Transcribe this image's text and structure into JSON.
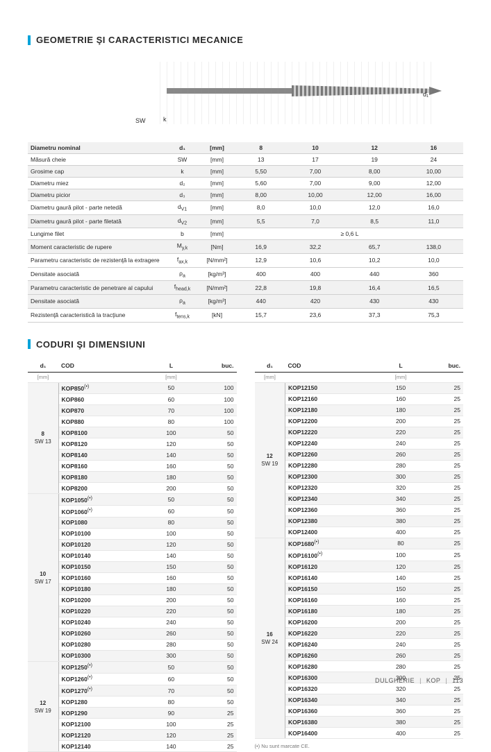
{
  "section1_title": "GEOMETRIE ŞI CARACTERISTICI MECANICE",
  "section2_title": "CODURI ŞI DIMENSIUNI",
  "diagram": {
    "sw": "SW",
    "k": "k",
    "d1": "d₁"
  },
  "mech": {
    "rows": [
      {
        "alt": true,
        "bold": true,
        "label": "Diametru nominal",
        "sym": "d₁",
        "unit": "[mm]",
        "v8": "8",
        "v10": "10",
        "v12": "12",
        "v16": "16"
      },
      {
        "alt": false,
        "label": "Măsură cheie",
        "sym": "SW",
        "unit": "[mm]",
        "v8": "13",
        "v10": "17",
        "v12": "19",
        "v16": "24"
      },
      {
        "alt": true,
        "label": "Grosime cap",
        "sym": "k",
        "unit": "[mm]",
        "v8": "5,50",
        "v10": "7,00",
        "v12": "8,00",
        "v16": "10,00"
      },
      {
        "alt": false,
        "label": "Diametru miez",
        "sym": "d₂",
        "unit": "[mm]",
        "v8": "5,60",
        "v10": "7,00",
        "v12": "9,00",
        "v16": "12,00"
      },
      {
        "alt": true,
        "label": "Diametru picior",
        "sym": "d₃",
        "unit": "[mm]",
        "v8": "8,00",
        "v10": "10,00",
        "v12": "12,00",
        "v16": "16,00"
      },
      {
        "alt": false,
        "label": "Diametru gaură pilot - parte netedă",
        "sym": "d",
        "subsym": "V1",
        "unit": "[mm]",
        "v8": "8,0",
        "v10": "10,0",
        "v12": "12,0",
        "v16": "16,0"
      },
      {
        "alt": true,
        "label": "Diametru gaură pilot - parte filetată",
        "sym": "d",
        "subsym": "V2",
        "unit": "[mm]",
        "v8": "5,5",
        "v10": "7,0",
        "v12": "8,5",
        "v16": "11,0"
      },
      {
        "alt": false,
        "label": "Lungime filet",
        "sym": "b",
        "unit": "[mm]",
        "span": "≥ 0,6 L"
      },
      {
        "alt": true,
        "label": "Moment caracteristic de rupere",
        "sym": "M",
        "subsym": "y,k",
        "unit": "[Nm]",
        "v8": "16,9",
        "v10": "32,2",
        "v12": "65,7",
        "v16": "138,0"
      },
      {
        "alt": false,
        "label": "Parametru caracteristic de rezistenţă la extragere",
        "sym": "f",
        "subsym": "ax,k",
        "unit": "[N/mm²]",
        "v8": "12,9",
        "v10": "10,6",
        "v12": "10,2",
        "v16": "10,0"
      },
      {
        "alt": false,
        "label": "Densitate asociată",
        "sym": "ρ",
        "subsym": "a",
        "unit": "[kg/m³]",
        "v8": "400",
        "v10": "400",
        "v12": "440",
        "v16": "360"
      },
      {
        "alt": true,
        "label": "Parametru caracteristic de penetrare al capului",
        "sym": "f",
        "subsym": "head,k",
        "unit": "[N/mm²]",
        "v8": "22,8",
        "v10": "19,8",
        "v12": "16,4",
        "v16": "16,5"
      },
      {
        "alt": true,
        "label": "Densitate asociată",
        "sym": "ρ",
        "subsym": "a",
        "unit": "[kg/m³]",
        "v8": "440",
        "v10": "420",
        "v12": "430",
        "v16": "430"
      },
      {
        "alt": false,
        "label": "Rezistenţă caracteristică la tracţiune",
        "sym": "f",
        "subsym": "tens,k",
        "unit": "[kN]",
        "v8": "15,7",
        "v10": "23,6",
        "v12": "37,3",
        "v16": "75,3"
      }
    ]
  },
  "codes": {
    "headers": {
      "d1": "d₁",
      "cod": "COD",
      "l": "L",
      "buc": "buc."
    },
    "unit": "[mm]",
    "left": [
      {
        "group": {
          "d1": "8",
          "sw": "SW 13"
        },
        "rows": [
          {
            "cod": "KOP850",
            "sup": "(•)",
            "l": "50",
            "b": "100"
          },
          {
            "cod": "KOP860",
            "l": "60",
            "b": "100"
          },
          {
            "cod": "KOP870",
            "l": "70",
            "b": "100"
          },
          {
            "cod": "KOP880",
            "l": "80",
            "b": "100"
          },
          {
            "cod": "KOP8100",
            "l": "100",
            "b": "50"
          },
          {
            "cod": "KOP8120",
            "l": "120",
            "b": "50"
          },
          {
            "cod": "KOP8140",
            "l": "140",
            "b": "50"
          },
          {
            "cod": "KOP8160",
            "l": "160",
            "b": "50"
          },
          {
            "cod": "KOP8180",
            "l": "180",
            "b": "50"
          },
          {
            "cod": "KOP8200",
            "l": "200",
            "b": "50"
          }
        ]
      },
      {
        "group": {
          "d1": "10",
          "sw": "SW 17"
        },
        "rows": [
          {
            "cod": "KOP1050",
            "sup": "(•)",
            "l": "50",
            "b": "50"
          },
          {
            "cod": "KOP1060",
            "sup": "(•)",
            "l": "60",
            "b": "50"
          },
          {
            "cod": "KOP1080",
            "l": "80",
            "b": "50"
          },
          {
            "cod": "KOP10100",
            "l": "100",
            "b": "50"
          },
          {
            "cod": "KOP10120",
            "l": "120",
            "b": "50"
          },
          {
            "cod": "KOP10140",
            "l": "140",
            "b": "50"
          },
          {
            "cod": "KOP10150",
            "l": "150",
            "b": "50"
          },
          {
            "cod": "KOP10160",
            "l": "160",
            "b": "50"
          },
          {
            "cod": "KOP10180",
            "l": "180",
            "b": "50"
          },
          {
            "cod": "KOP10200",
            "l": "200",
            "b": "50"
          },
          {
            "cod": "KOP10220",
            "l": "220",
            "b": "50"
          },
          {
            "cod": "KOP10240",
            "l": "240",
            "b": "50"
          },
          {
            "cod": "KOP10260",
            "l": "260",
            "b": "50"
          },
          {
            "cod": "KOP10280",
            "l": "280",
            "b": "50"
          },
          {
            "cod": "KOP10300",
            "l": "300",
            "b": "50"
          }
        ]
      },
      {
        "group": {
          "d1": "12",
          "sw": "SW 19"
        },
        "rows": [
          {
            "cod": "KOP1250",
            "sup": "(•)",
            "l": "50",
            "b": "50"
          },
          {
            "cod": "KOP1260",
            "sup": "(•)",
            "l": "60",
            "b": "50"
          },
          {
            "cod": "KOP1270",
            "sup": "(•)",
            "l": "70",
            "b": "50"
          },
          {
            "cod": "KOP1280",
            "l": "80",
            "b": "50"
          },
          {
            "cod": "KOP1290",
            "l": "90",
            "b": "25"
          },
          {
            "cod": "KOP12100",
            "l": "100",
            "b": "25"
          },
          {
            "cod": "KOP12120",
            "l": "120",
            "b": "25"
          },
          {
            "cod": "KOP12140",
            "l": "140",
            "b": "25"
          }
        ]
      }
    ],
    "right": [
      {
        "group": {
          "d1": "12",
          "sw": "SW 19"
        },
        "rows": [
          {
            "cod": "KOP12150",
            "l": "150",
            "b": "25"
          },
          {
            "cod": "KOP12160",
            "l": "160",
            "b": "25"
          },
          {
            "cod": "KOP12180",
            "l": "180",
            "b": "25"
          },
          {
            "cod": "KOP12200",
            "l": "200",
            "b": "25"
          },
          {
            "cod": "KOP12220",
            "l": "220",
            "b": "25"
          },
          {
            "cod": "KOP12240",
            "l": "240",
            "b": "25"
          },
          {
            "cod": "KOP12260",
            "l": "260",
            "b": "25"
          },
          {
            "cod": "KOP12280",
            "l": "280",
            "b": "25"
          },
          {
            "cod": "KOP12300",
            "l": "300",
            "b": "25"
          },
          {
            "cod": "KOP12320",
            "l": "320",
            "b": "25"
          },
          {
            "cod": "KOP12340",
            "l": "340",
            "b": "25"
          },
          {
            "cod": "KOP12360",
            "l": "360",
            "b": "25"
          },
          {
            "cod": "KOP12380",
            "l": "380",
            "b": "25"
          },
          {
            "cod": "KOP12400",
            "l": "400",
            "b": "25"
          }
        ]
      },
      {
        "group": {
          "d1": "16",
          "sw": "SW 24"
        },
        "rows": [
          {
            "cod": "KOP1680",
            "sup": "(•)",
            "l": "80",
            "b": "25"
          },
          {
            "cod": "KOP16100",
            "sup": "(•)",
            "l": "100",
            "b": "25"
          },
          {
            "cod": "KOP16120",
            "l": "120",
            "b": "25"
          },
          {
            "cod": "KOP16140",
            "l": "140",
            "b": "25"
          },
          {
            "cod": "KOP16150",
            "l": "150",
            "b": "25"
          },
          {
            "cod": "KOP16160",
            "l": "160",
            "b": "25"
          },
          {
            "cod": "KOP16180",
            "l": "180",
            "b": "25"
          },
          {
            "cod": "KOP16200",
            "l": "200",
            "b": "25"
          },
          {
            "cod": "KOP16220",
            "l": "220",
            "b": "25"
          },
          {
            "cod": "KOP16240",
            "l": "240",
            "b": "25"
          },
          {
            "cod": "KOP16260",
            "l": "260",
            "b": "25"
          },
          {
            "cod": "KOP16280",
            "l": "280",
            "b": "25"
          },
          {
            "cod": "KOP16300",
            "l": "300",
            "b": "25"
          },
          {
            "cod": "KOP16320",
            "l": "320",
            "b": "25"
          },
          {
            "cod": "KOP16340",
            "l": "340",
            "b": "25"
          },
          {
            "cod": "KOP16360",
            "l": "360",
            "b": "25"
          },
          {
            "cod": "KOP16380",
            "l": "380",
            "b": "25"
          },
          {
            "cod": "KOP16400",
            "l": "400",
            "b": "25"
          }
        ]
      }
    ],
    "footnote": "(•) Nu sunt marcate CE."
  },
  "footer": {
    "a": "DULGHERIE",
    "b": "KOP",
    "c": "113"
  },
  "colors": {
    "accent": "#00a3d9",
    "text": "#2a2a2a",
    "row_alt": "#f1f1f1",
    "border": "#cfcfcf"
  }
}
